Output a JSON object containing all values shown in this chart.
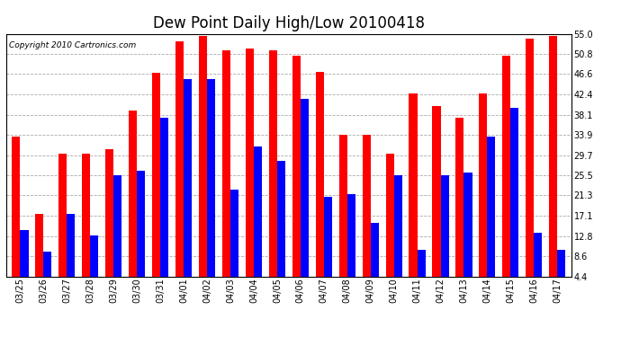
{
  "title": "Dew Point Daily High/Low 20100418",
  "copyright": "Copyright 2010 Cartronics.com",
  "dates": [
    "03/25",
    "03/26",
    "03/27",
    "03/28",
    "03/29",
    "03/30",
    "03/31",
    "04/01",
    "04/02",
    "04/03",
    "04/04",
    "04/05",
    "04/06",
    "04/07",
    "04/08",
    "04/09",
    "04/10",
    "04/11",
    "04/12",
    "04/13",
    "04/14",
    "04/15",
    "04/16",
    "04/17"
  ],
  "highs": [
    33.5,
    17.5,
    30.0,
    30.0,
    31.0,
    39.0,
    46.8,
    53.5,
    54.5,
    51.5,
    52.0,
    51.5,
    50.5,
    47.0,
    34.0,
    34.0,
    30.0,
    42.5,
    40.0,
    37.5,
    42.5,
    50.5,
    54.0,
    54.5
  ],
  "lows": [
    14.0,
    9.5,
    17.5,
    13.0,
    25.5,
    26.5,
    37.5,
    45.5,
    45.5,
    22.5,
    31.5,
    28.5,
    41.5,
    21.0,
    21.5,
    15.5,
    25.5,
    10.0,
    25.5,
    26.0,
    33.5,
    39.5,
    13.5,
    10.0
  ],
  "high_color": "#FF0000",
  "low_color": "#0000FF",
  "bg_color": "#FFFFFF",
  "grid_color": "#AAAAAA",
  "ylim": [
    4.4,
    55.0
  ],
  "yticks": [
    4.4,
    8.6,
    12.8,
    17.1,
    21.3,
    25.5,
    29.7,
    33.9,
    38.1,
    42.4,
    46.6,
    50.8,
    55.0
  ],
  "bar_width": 0.35,
  "title_fontsize": 12,
  "tick_fontsize": 7,
  "copyright_fontsize": 6.5
}
